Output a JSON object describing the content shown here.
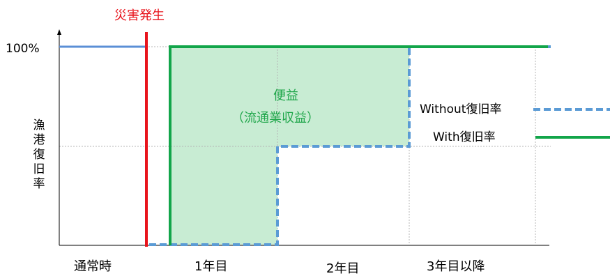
{
  "title": "",
  "disaster_label": "災害発生",
  "y_axis": {
    "label": "漁港復旧率",
    "label_chars": [
      "漁",
      "港",
      "復",
      "旧",
      "率"
    ],
    "top_tick": "100%"
  },
  "x_axis": {
    "categories": [
      "通常時",
      "1年目",
      "2年目",
      "3年目以降"
    ]
  },
  "benefit": {
    "line1": "便益",
    "line2": "（流通業収益）"
  },
  "legend": {
    "without": "Without復旧率",
    "with": "With復旧率"
  },
  "colors": {
    "normal_line": "#5b8fd6",
    "disaster_line": "#e8141c",
    "with_line": "#12a54a",
    "without_line": "#5b9bd5",
    "benefit_fill": "#c8ecd3",
    "grid": "#b5b5b5"
  }
}
